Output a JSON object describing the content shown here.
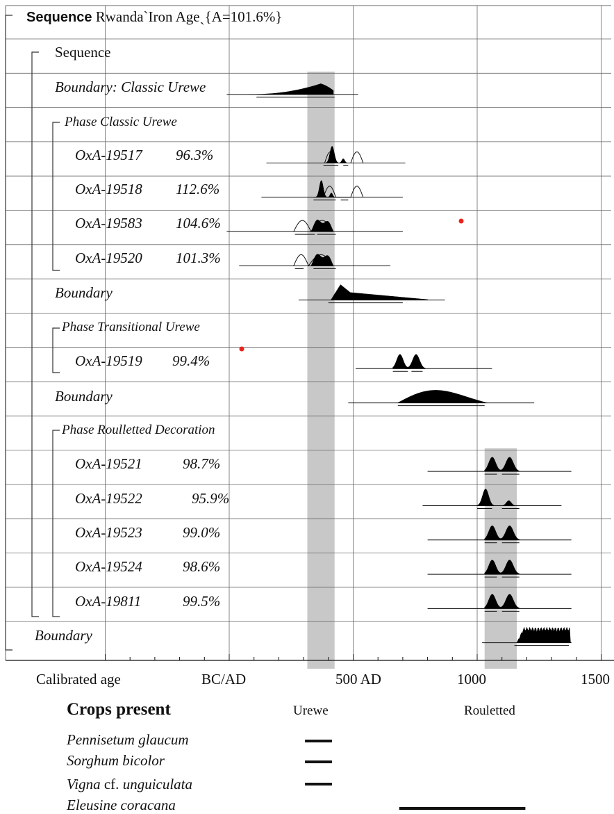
{
  "header": {
    "sequence_word": "Sequence",
    "title_rest": "RwandaˋIron Ageˎ{A=101.6%}"
  },
  "chart_data": {
    "type": "radiocarbon_sequence_plot",
    "xlabel": "Calibrated age",
    "xlim_AD": [
      -1000,
      1500
    ],
    "x_ticks": [
      {
        "value": 0,
        "label": "BC/AD"
      },
      {
        "value": 500,
        "label": "500 AD"
      },
      {
        "value": 1000,
        "label": "1000"
      },
      {
        "value": 1500,
        "label": "1500"
      }
    ],
    "grid": true,
    "highlight_bands": [
      {
        "label": "Urewe",
        "from": 315,
        "to": 425
      },
      {
        "label": "Rouletted",
        "from": 1030,
        "to": 1160
      }
    ],
    "rows": [
      {
        "label": "Sequence",
        "kind": "sequence"
      },
      {
        "label": "Boundary: Classic Urewe",
        "kind": "boundary",
        "shape": "rising",
        "range": [
          -10,
          520
        ],
        "peak": 360,
        "dist_from": 80,
        "dist_to": 420,
        "bars": [
          [
            110,
            425
          ]
        ]
      },
      {
        "label": "Phase Classic Urewe",
        "kind": "phase"
      },
      {
        "label": "OxA-19517",
        "agreement": "96.3%",
        "kind": "date",
        "shape": "peak",
        "range": [
          150,
          710
        ],
        "peak": 400,
        "dist_from": 380,
        "dist_to": 480,
        "bars": [
          [
            380,
            440
          ],
          [
            460,
            480
          ]
        ],
        "bimodal": [
          [
            385,
            430
          ],
          [
            490,
            540
          ]
        ]
      },
      {
        "label": "OxA-19518",
        "agreement": "112.6%",
        "kind": "date",
        "shape": "peak",
        "range": [
          130,
          700
        ],
        "peak": 400,
        "dist_from": 340,
        "dist_to": 430,
        "bars": [
          [
            340,
            430
          ],
          [
            450,
            480
          ]
        ],
        "bimodal": [
          [
            380,
            430
          ],
          [
            490,
            540
          ]
        ]
      },
      {
        "label": "OxA-19583",
        "agreement": "104.6%",
        "kind": "date",
        "shape": "hump",
        "range": [
          -10,
          700
        ],
        "peak": 380,
        "dist_from": 330,
        "dist_to": 420,
        "bars": [
          [
            265,
            345
          ],
          [
            355,
            430
          ]
        ],
        "bimodal": [
          [
            260,
            330
          ],
          [
            330,
            420
          ]
        ]
      },
      {
        "label": "OxA-19520",
        "agreement": "101.3%",
        "kind": "date",
        "shape": "hump",
        "range": [
          40,
          650
        ],
        "peak": 370,
        "dist_from": 330,
        "dist_to": 420,
        "bars": [
          [
            265,
            300
          ],
          [
            340,
            430
          ]
        ],
        "bimodal": [
          [
            260,
            320
          ],
          [
            320,
            420
          ]
        ]
      },
      {
        "label": "Boundary",
        "kind": "boundary",
        "shape": "falling",
        "range": [
          280,
          870
        ],
        "peak": 420,
        "dist_from": 410,
        "dist_to": 800,
        "bars": [
          [
            400,
            700
          ]
        ]
      },
      {
        "label": "Phase Transitional Urewe",
        "kind": "phase"
      },
      {
        "label": "OxA-19519",
        "agreement": "99.4%",
        "kind": "date",
        "shape": "twin",
        "range": [
          510,
          1060
        ],
        "peak": 680,
        "dist_from": 660,
        "dist_to": 790,
        "bars": [
          [
            660,
            720
          ],
          [
            735,
            780
          ]
        ],
        "bimodal": [
          [
            670,
            710
          ],
          [
            730,
            780
          ]
        ]
      },
      {
        "label": "Boundary",
        "kind": "boundary",
        "shape": "plateau",
        "range": [
          480,
          1230
        ],
        "peak": 720,
        "dist_from": 680,
        "dist_to": 1040,
        "bars": [
          [
            680,
            1030
          ]
        ]
      },
      {
        "label": "Phase Roulletted Decoration",
        "kind": "phase"
      },
      {
        "label": "OxA-19521",
        "agreement": "98.7%",
        "kind": "date",
        "shape": "twin",
        "range": [
          800,
          1380
        ],
        "peak": 1050,
        "dist_from": 1030,
        "dist_to": 1170,
        "bars": [
          [
            1030,
            1080
          ],
          [
            1100,
            1170
          ]
        ]
      },
      {
        "label": "OxA-19522",
        "agreement": "95.9%",
        "kind": "date",
        "shape": "lopsided",
        "range": [
          780,
          1340
        ],
        "peak": 1040,
        "dist_from": 1000,
        "dist_to": 1170,
        "bars": [
          [
            1000,
            1060
          ],
          [
            1100,
            1170
          ]
        ]
      },
      {
        "label": "OxA-19523",
        "agreement": "99.0%",
        "kind": "date",
        "shape": "twin",
        "range": [
          800,
          1380
        ],
        "peak": 1050,
        "dist_from": 1030,
        "dist_to": 1170,
        "bars": [
          [
            1030,
            1080
          ],
          [
            1100,
            1170
          ]
        ]
      },
      {
        "label": "OxA-19524",
        "agreement": "98.6%",
        "kind": "date",
        "shape": "twin",
        "range": [
          800,
          1380
        ],
        "peak": 1050,
        "dist_from": 1030,
        "dist_to": 1170,
        "bars": [
          [
            1030,
            1080
          ],
          [
            1100,
            1170
          ]
        ]
      },
      {
        "label": "OxA-19811",
        "agreement": "99.5%",
        "kind": "date",
        "shape": "twin",
        "range": [
          800,
          1380
        ],
        "peak": 1050,
        "dist_from": 1030,
        "dist_to": 1170,
        "bars": [
          [
            1030,
            1080
          ],
          [
            1100,
            1170
          ]
        ]
      },
      {
        "label": "Boundary",
        "kind": "boundary",
        "shape": "jagged",
        "range": [
          1020,
          1380
        ],
        "peak": 1200,
        "dist_from": 1160,
        "dist_to": 1380,
        "bars": [
          [
            1150,
            1370
          ]
        ]
      }
    ],
    "crops": {
      "title": "Crops present",
      "items": [
        {
          "name": "Pennisetum glaucum",
          "from": 300,
          "to": 420
        },
        {
          "name": "Sorghum bicolor",
          "from": 300,
          "to": 420
        },
        {
          "name": "Vigna cf. unguiculata",
          "from": 300,
          "to": 420
        },
        {
          "name": "Eleusine coracana",
          "from": 680,
          "to": 1200
        }
      ]
    },
    "colors": {
      "band": "#c8c8c8",
      "dist": "#000000",
      "grid": "#666666",
      "marker": "#e8241c"
    }
  }
}
